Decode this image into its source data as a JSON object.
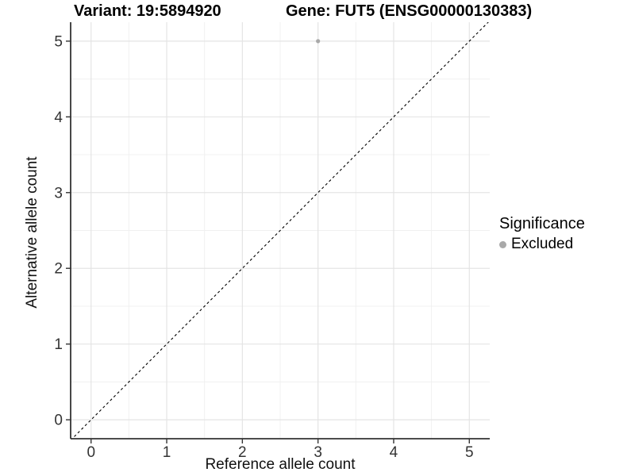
{
  "figure": {
    "title_left": "Variant: 19:5894920",
    "title_right": "Gene: FUT5 (ENSG00000130383)"
  },
  "chart_data": {
    "type": "scatter",
    "title": "Variant: 19:5894920 — Gene: FUT5 (ENSG00000130383)",
    "xlabel": "Reference allele count",
    "ylabel": "Alternative allele count",
    "xlim": [
      -0.27,
      5.27
    ],
    "ylim": [
      -0.25,
      5.25
    ],
    "x_ticks": [
      0,
      1,
      2,
      3,
      4,
      5
    ],
    "y_ticks": [
      0,
      1,
      2,
      3,
      4,
      5
    ],
    "grid": {
      "major": true,
      "minor": true,
      "major_color": "#e4e4e4",
      "minor_color": "#f0f0f0",
      "background": "#ffffff"
    },
    "axis": {
      "line_color": "#333333",
      "tick_color": "#333333",
      "tick_label_color": "#333333"
    },
    "reference_line": {
      "type": "identity",
      "style": "dashed",
      "color": "#000000"
    },
    "series": [
      {
        "name": "Excluded",
        "color": "#a9a9a9",
        "points": [
          {
            "x": 3,
            "y": 5
          }
        ]
      }
    ],
    "legend": {
      "title": "Significance",
      "position": "right",
      "entries": [
        {
          "label": "Excluded",
          "color": "#a9a9a9"
        }
      ]
    }
  }
}
